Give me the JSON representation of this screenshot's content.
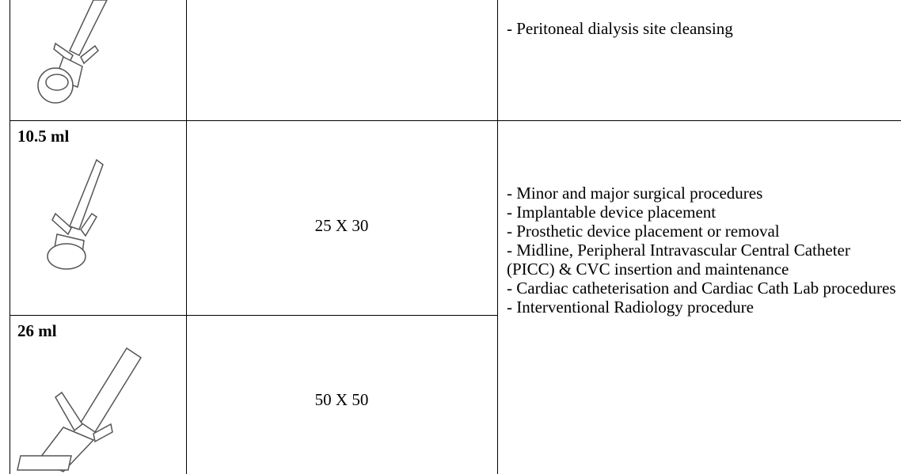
{
  "table": {
    "rows": [
      {
        "cells": [
          "- Peritoneal dialysis site cleansing"
        ]
      },
      {
        "volume": "10.5 ml",
        "size": "25 X 30"
      },
      {
        "volume": "26 ml",
        "size": "50 X 50"
      }
    ],
    "uses": [
      "- Minor and major surgical procedures",
      "- Implantable device placement",
      "- Prosthetic device placement or removal",
      "- Midline, Peripheral Intravascular Central Catheter (PICC) & CVC insertion and maintenance",
      "- Cardiac catheterisation and Cardiac Cath Lab procedures",
      "- Interventional Radiology procedure"
    ]
  }
}
